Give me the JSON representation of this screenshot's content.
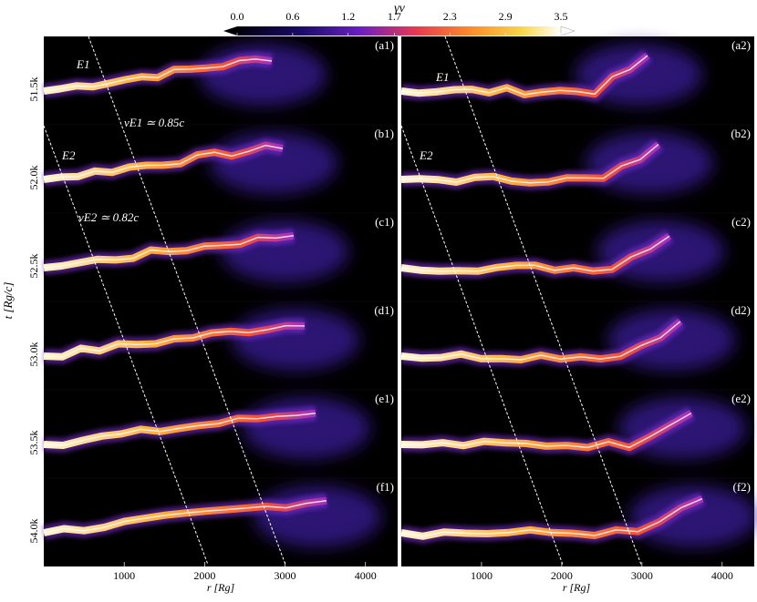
{
  "chart_data": {
    "type": "image-grid",
    "title": "γv",
    "colorbar": {
      "clim": [
        0,
        3.5
      ],
      "ticks": [
        {
          "value": 0,
          "label": "0.0"
        },
        0.6,
        1.2,
        1.7,
        2.3,
        2.9,
        3.5
      ]
    },
    "xlabel": "r [Rg]",
    "ylabel": "t [Rg/c]",
    "xlim": [
      0,
      4400
    ],
    "xticks": [
      1000,
      2000,
      3000,
      4000
    ],
    "rows": [
      "51.5k",
      "52.0k",
      "52.5k",
      "53.0k",
      "53.5k",
      "54.0k"
    ],
    "panels": [
      [
        "(a1)",
        "(b1)",
        "(c1)",
        "(d1)",
        "(e1)",
        "(f1)"
      ],
      [
        "(a2)",
        "(b2)",
        "(c2)",
        "(d2)",
        "(e2)",
        "(f2)"
      ]
    ],
    "annotations": [
      "E1",
      "E2",
      "vE1 ≃ 0.85c",
      "vE2 ≃ 0.82c",
      "E1",
      "E2"
    ]
  }
}
